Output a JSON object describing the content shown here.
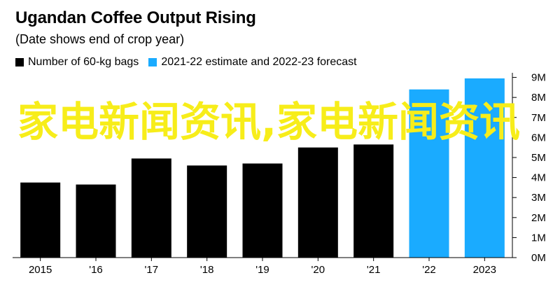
{
  "header": {
    "title": "Ugandan Coffee Output Rising",
    "subtitle": "(Date shows end of crop year)"
  },
  "legend": [
    {
      "label": "Number of 60-kg bags",
      "color": "#000000"
    },
    {
      "label": "2021-22 estimate and 2022-23 forecast",
      "color": "#1aabff"
    }
  ],
  "overlay_text": "家电新闻资讯,家电新闻资讯",
  "chart_data": {
    "type": "bar",
    "title": "Ugandan Coffee Output Rising",
    "subtitle": "(Date shows end of crop year)",
    "categories": [
      "2015",
      "'16",
      "'17",
      "'18",
      "'19",
      "'20",
      "'21",
      "'22",
      "2023"
    ],
    "series": [
      {
        "name": "Number of 60-kg bags",
        "color": "#000000",
        "values": [
          3.75,
          3.65,
          4.95,
          4.6,
          4.7,
          5.5,
          5.65,
          null,
          null
        ]
      },
      {
        "name": "2021-22 estimate and 2022-23 forecast",
        "color": "#1aabff",
        "values": [
          null,
          null,
          null,
          null,
          null,
          null,
          null,
          8.4,
          8.95
        ]
      }
    ],
    "yticks": [
      "0M",
      "1M",
      "2M",
      "3M",
      "4M",
      "5M",
      "6M",
      "7M",
      "8M",
      "9M"
    ],
    "ylim": [
      0,
      9.3
    ],
    "yaxis_position": "right",
    "grid": false,
    "legend_position": "top-left"
  }
}
